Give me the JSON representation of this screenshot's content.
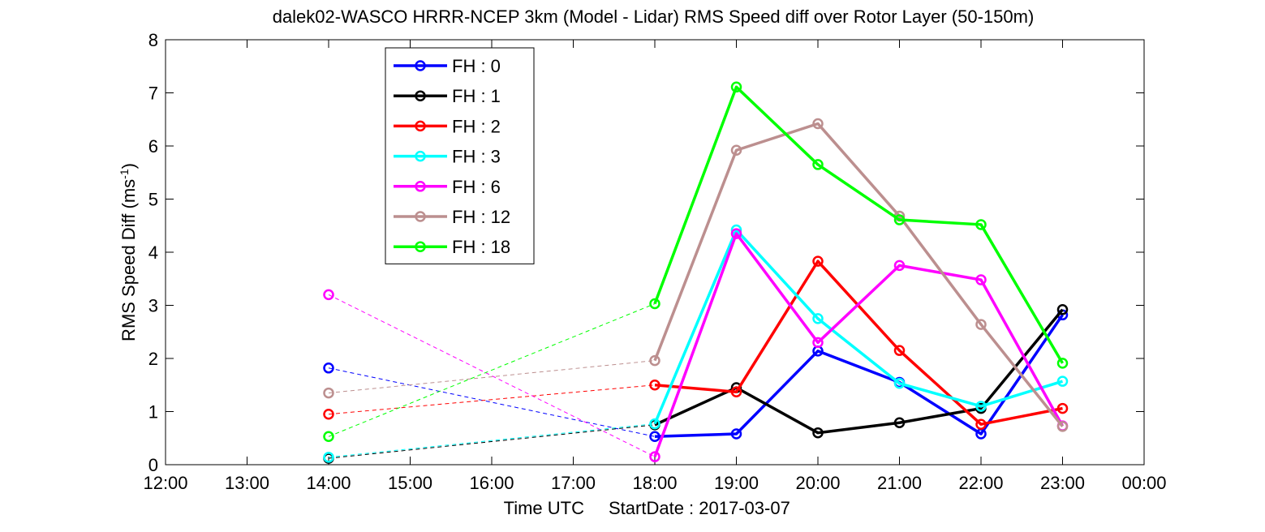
{
  "chart_data": {
    "type": "line",
    "title": "dalek02-WASCO HRRR-NCEP 3km (Model - Lidar) RMS Speed diff over Rotor Layer (50-150m)",
    "xlabel": "Time UTC",
    "xlabel_extra": "StartDate : 2017-03-07",
    "ylabel": "RMS Speed Diff (ms",
    "ylabel_sup": "-1",
    "ylabel_close": ")",
    "ylim": [
      0,
      8
    ],
    "yticks": [
      "0",
      "1",
      "2",
      "3",
      "4",
      "5",
      "6",
      "7",
      "8"
    ],
    "xlim": [
      12,
      24
    ],
    "xticks": [
      "12:00",
      "13:00",
      "14:00",
      "15:00",
      "16:00",
      "17:00",
      "18:00",
      "19:00",
      "20:00",
      "21:00",
      "22:00",
      "23:00",
      "00:00"
    ],
    "legend_position": "top-left",
    "series": [
      {
        "name": "FH : 0",
        "color": "#0000ff",
        "x": [
          14,
          18,
          19,
          20,
          21,
          22,
          23
        ],
        "y": [
          1.82,
          0.53,
          0.58,
          2.14,
          1.55,
          0.58,
          2.82
        ]
      },
      {
        "name": "FH : 1",
        "color": "#000000",
        "x": [
          14,
          18,
          19,
          20,
          21,
          22,
          23
        ],
        "y": [
          0.12,
          0.75,
          1.45,
          0.6,
          0.79,
          1.06,
          2.92
        ]
      },
      {
        "name": "FH : 2",
        "color": "#ff0000",
        "x": [
          14,
          18,
          19,
          20,
          21,
          22,
          23
        ],
        "y": [
          0.95,
          1.5,
          1.37,
          3.83,
          2.15,
          0.76,
          1.06
        ]
      },
      {
        "name": "FH : 3",
        "color": "#00ffff",
        "x": [
          14,
          18,
          19,
          20,
          21,
          22,
          23
        ],
        "y": [
          0.14,
          0.77,
          4.42,
          2.75,
          1.53,
          1.1,
          1.57
        ]
      },
      {
        "name": "FH : 6",
        "color": "#ff00ff",
        "x": [
          14,
          18,
          19,
          20,
          21,
          22,
          23
        ],
        "y": [
          3.2,
          0.15,
          4.35,
          2.3,
          3.75,
          3.48,
          0.73
        ]
      },
      {
        "name": "FH : 12",
        "color": "#bc8f8f",
        "x": [
          14,
          18,
          19,
          20,
          21,
          22,
          23
        ],
        "y": [
          1.35,
          1.96,
          5.92,
          6.42,
          4.68,
          2.64,
          0.72
        ]
      },
      {
        "name": "FH : 18",
        "color": "#00ff00",
        "x": [
          14,
          18,
          19,
          20,
          21,
          22,
          23
        ],
        "y": [
          0.53,
          3.03,
          7.11,
          5.65,
          4.61,
          4.52,
          1.91
        ]
      }
    ]
  }
}
